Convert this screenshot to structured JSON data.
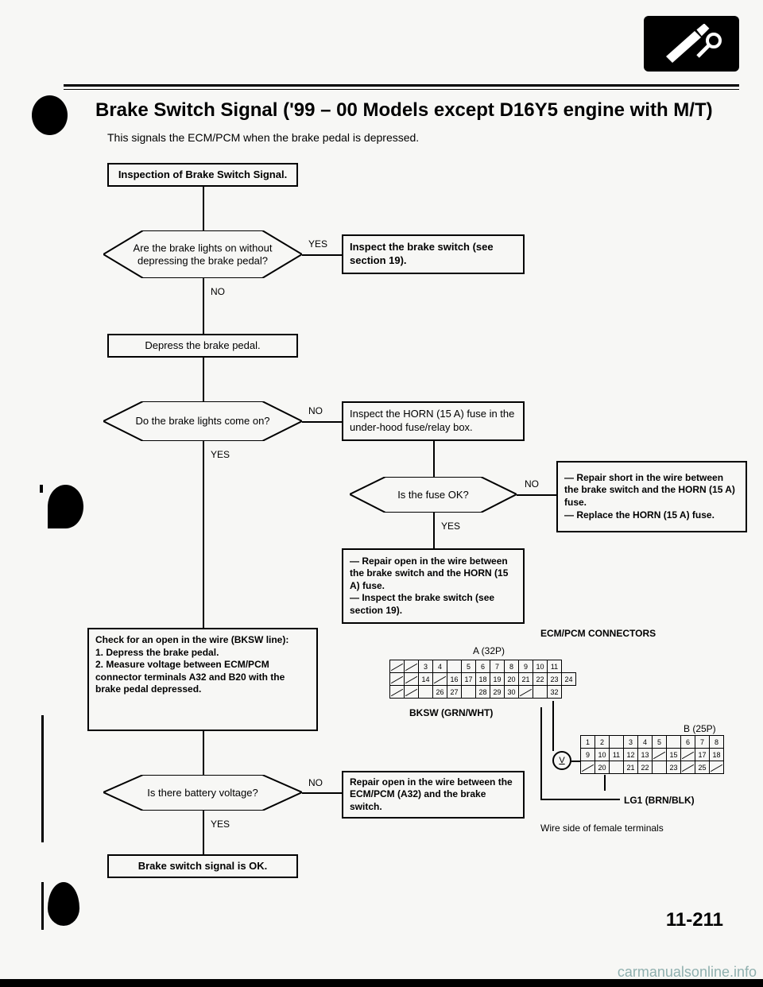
{
  "title": "Brake Switch Signal ('99 – 00 Models except D16Y5 engine with M/T)",
  "subtitle": "This signals the ECM/PCM when the brake pedal is depressed.",
  "flow": {
    "inspection": "Inspection of Brake Switch Signal.",
    "diamond1": "Are the brake lights on without depressing the brake pedal?",
    "yes1": "YES",
    "no1": "NO",
    "action1": "Inspect the brake switch (see section 19).",
    "depress": "Depress the brake pedal.",
    "diamond2": "Do the brake lights come on?",
    "no2": "NO",
    "yes2": "YES",
    "action2": "Inspect the HORN (15 A) fuse in the under-hood fuse/relay box.",
    "diamond3": "Is the fuse OK?",
    "no3": "NO",
    "yes3": "YES",
    "action3": "— Repair short in the wire between the brake switch and the HORN (15 A) fuse.\n— Replace the HORN (15 A) fuse.",
    "action4": "— Repair open in the wire between the brake switch and the HORN (15 A) fuse.\n— Inspect the brake switch (see section 19).",
    "check": "Check for an open in the wire (BKSW line):\n1. Depress the brake pedal.\n2. Measure voltage between ECM/PCM connector terminals A32 and B20 with the brake pedal depressed.",
    "diamond4": "Is there battery voltage?",
    "no4": "NO",
    "yes4": "YES",
    "action5": "Repair open in the wire between the ECM/PCM (A32) and the brake switch.",
    "ok": "Brake switch signal is OK."
  },
  "connectors": {
    "title": "ECM/PCM CONNECTORS",
    "a_label": "A (32P)",
    "bksw": "BKSW (GRN/WHT)",
    "b_label": "B (25P)",
    "lg1": "LG1 (BRN/BLK)",
    "caption": "Wire side of female terminals",
    "a_rows": [
      [
        "",
        "",
        "3",
        "4",
        "",
        "5",
        "6",
        "7",
        "8",
        "9",
        "10",
        "11"
      ],
      [
        "",
        "",
        "14",
        "",
        "16",
        "17",
        "18",
        "19",
        "20",
        "21",
        "22",
        "23",
        "24"
      ],
      [
        "",
        "",
        "",
        "26",
        "27",
        "",
        "28",
        "29",
        "30",
        "",
        "",
        "32",
        ""
      ]
    ],
    "b_rows": [
      [
        "1",
        "2",
        "",
        "3",
        "4",
        "5",
        "",
        "6",
        "7",
        "8"
      ],
      [
        "9",
        "10",
        "11",
        "12",
        "13",
        "",
        "15",
        "",
        "17",
        "18"
      ],
      [
        "",
        "20",
        "",
        "21",
        "22",
        "",
        "23",
        "",
        "25",
        ""
      ]
    ]
  },
  "pagenum": "11-211",
  "watermark": "carmanualsonline.info"
}
